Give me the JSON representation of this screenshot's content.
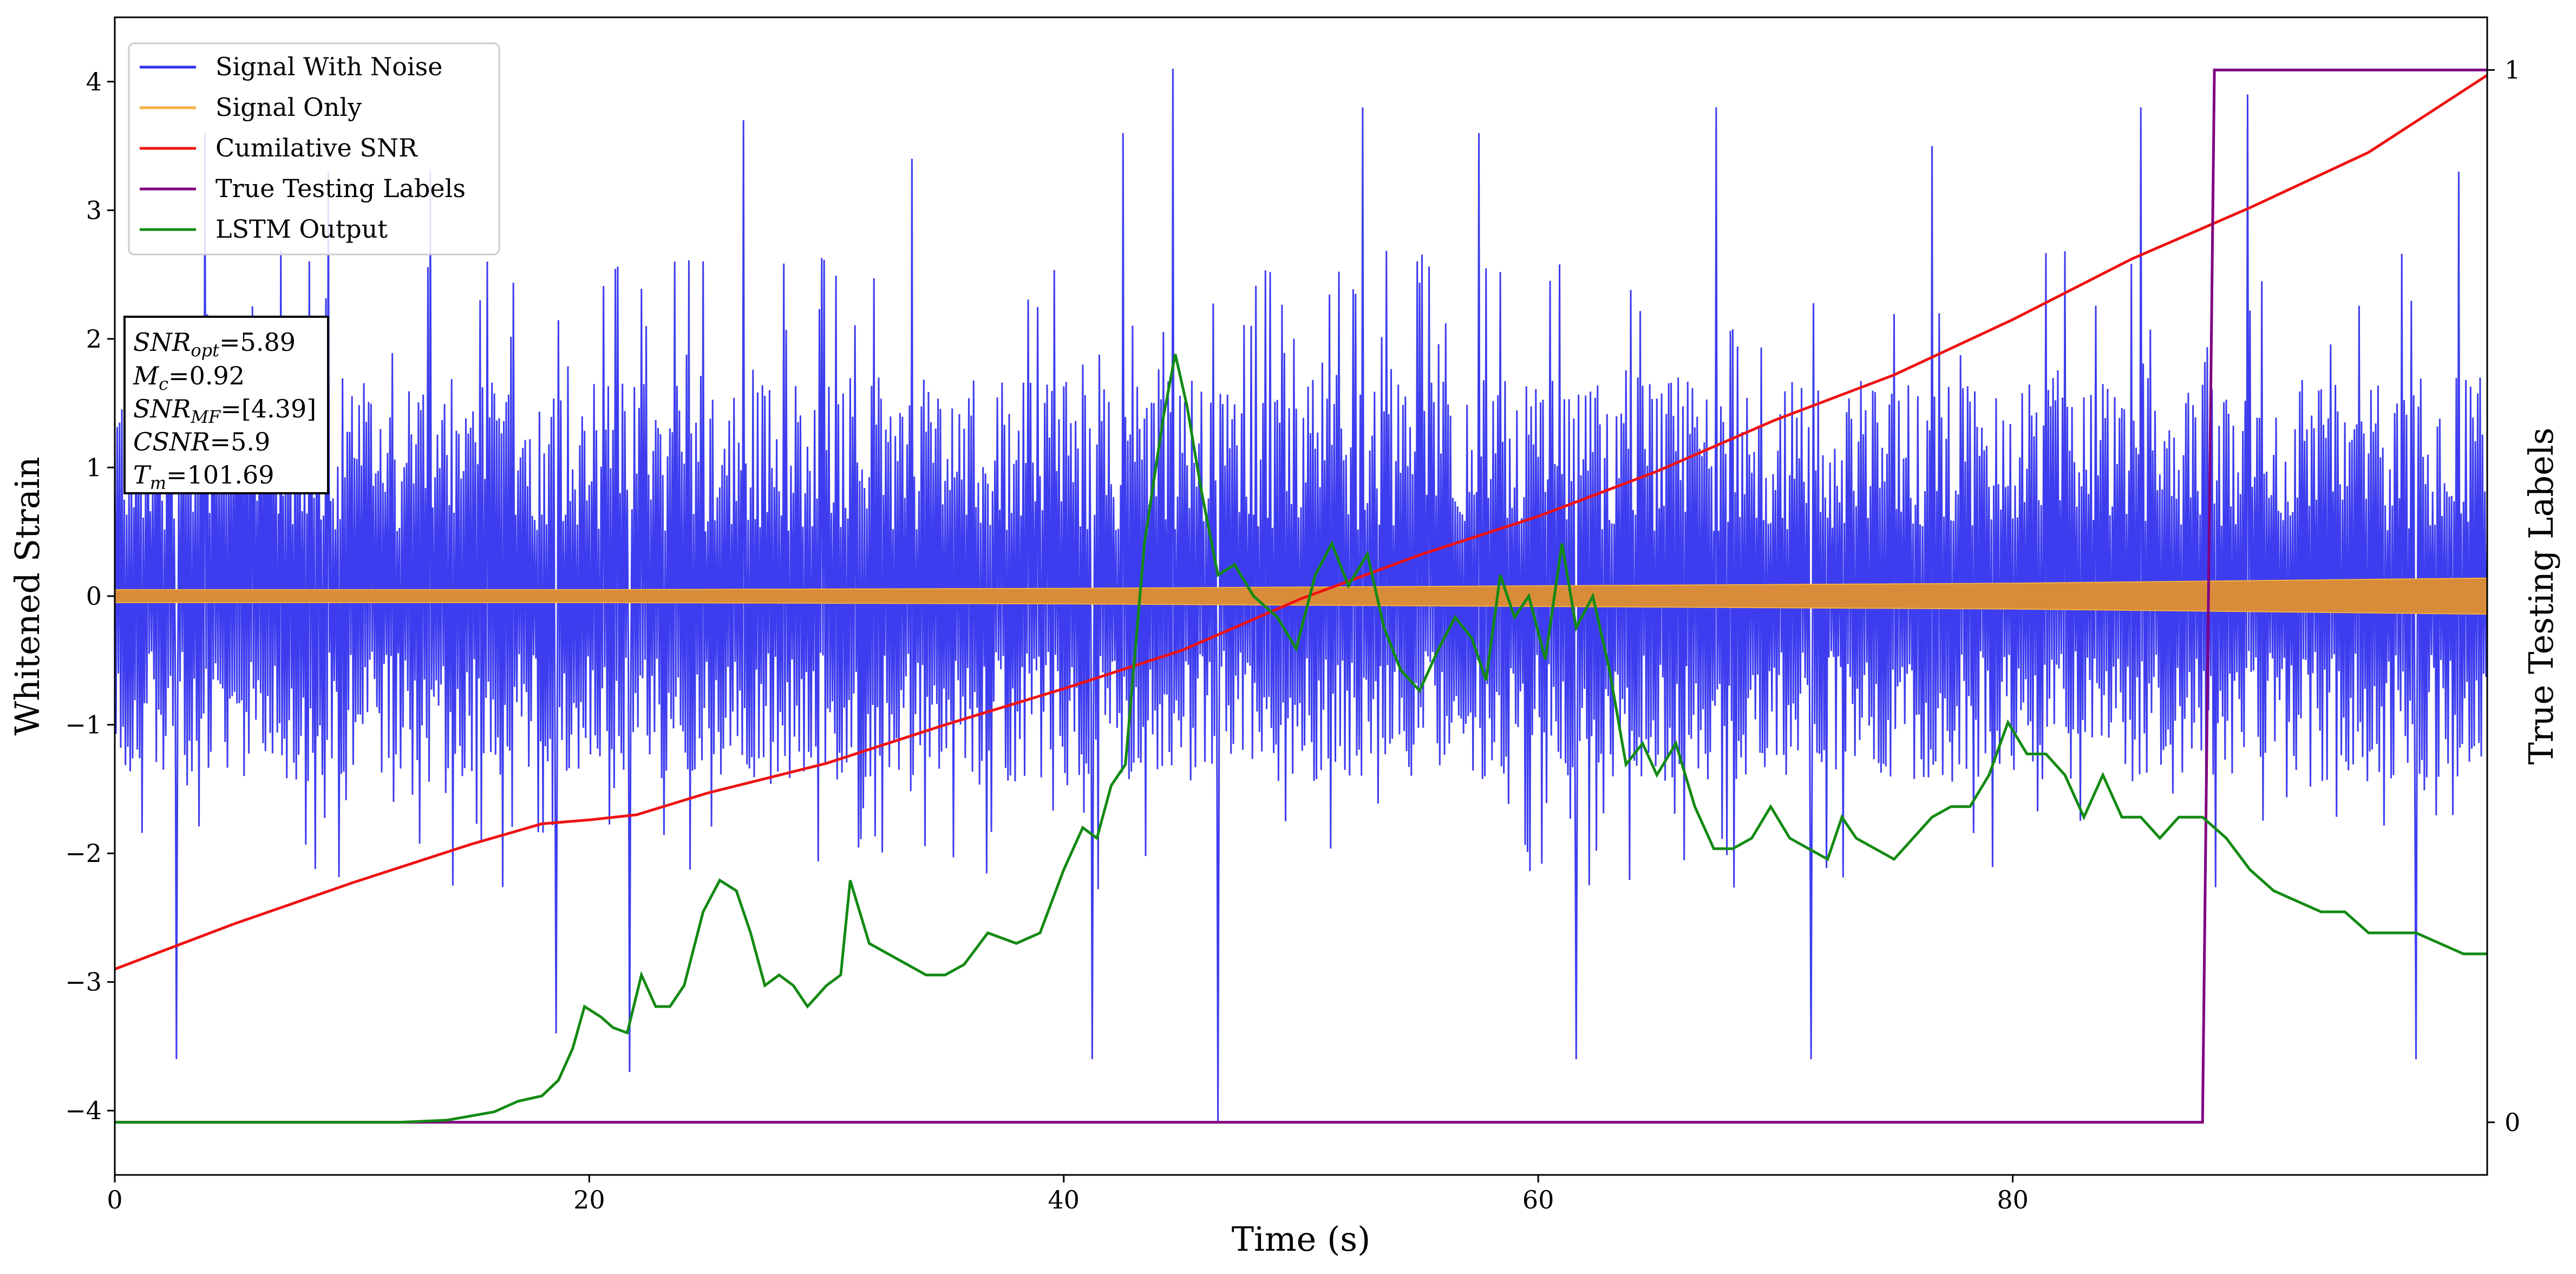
{
  "chart_data": {
    "type": "line",
    "xlabel": "Time (s)",
    "ylabel": "Whitened Strain",
    "y2label": "True Testing Labels",
    "xlim": [
      0,
      100
    ],
    "ylim": [
      -4.5,
      4.5
    ],
    "y2lim": [
      -0.05,
      1.05
    ],
    "x_ticks": [
      0,
      20,
      40,
      60,
      80
    ],
    "y_ticks": [
      -4,
      -3,
      -2,
      -1,
      0,
      1,
      2,
      3,
      4
    ],
    "y2_ticks": [
      0,
      1
    ],
    "grid": false,
    "legend_position": "top-left",
    "colors": {
      "signal_with_noise": "#3333ee",
      "signal_only": "#f5b041",
      "signal_only_band": "#d88c3a",
      "cumulative_snr": "#ee1111",
      "true_labels": "#800080",
      "lstm_output": "#138a13"
    },
    "legend": [
      {
        "label": "Signal With Noise",
        "color_key": "signal_with_noise"
      },
      {
        "label": "Signal Only",
        "color_key": "signal_only"
      },
      {
        "label": "Cumilative SNR",
        "color_key": "cumulative_snr"
      },
      {
        "label": "True Testing Labels",
        "color_key": "true_labels"
      },
      {
        "label": "LSTM Output",
        "color_key": "lstm_output"
      }
    ],
    "info_box": {
      "snr_opt": {
        "base": "SNR",
        "sub": "opt",
        "value": "=5.89"
      },
      "m_c": {
        "base": "M",
        "sub": "c",
        "value": "=0.92"
      },
      "snr_mf": {
        "base": "SNR",
        "sub": "MF",
        "value": "=[4.39]"
      },
      "csnr": {
        "base": "CSNR",
        "value": "=5.9"
      },
      "t_m": {
        "base": "T",
        "sub": "m",
        "value": "=101.69"
      }
    },
    "series": [
      {
        "name": "Signal With Noise",
        "axis": "left",
        "description_range": [
          -4.1,
          4.1
        ],
        "typical_envelope": {
          "upper": 2.3,
          "lower": -1.8
        },
        "spikes": [
          {
            "x": 3.8,
            "y": 3.6
          },
          {
            "x": 2.6,
            "y": -3.6
          },
          {
            "x": 9.0,
            "y": 3.3
          },
          {
            "x": 13.3,
            "y": 3.3
          },
          {
            "x": 18.6,
            "y": -3.4
          },
          {
            "x": 21.7,
            "y": -3.7
          },
          {
            "x": 26.5,
            "y": 3.7
          },
          {
            "x": 33.6,
            "y": 3.4
          },
          {
            "x": 41.2,
            "y": -3.6
          },
          {
            "x": 42.5,
            "y": 3.6
          },
          {
            "x": 44.6,
            "y": 4.1
          },
          {
            "x": 46.5,
            "y": -4.1
          },
          {
            "x": 52.6,
            "y": 3.8
          },
          {
            "x": 57.5,
            "y": 3.6
          },
          {
            "x": 61.6,
            "y": -3.6
          },
          {
            "x": 67.5,
            "y": 3.8
          },
          {
            "x": 71.5,
            "y": -3.6
          },
          {
            "x": 76.6,
            "y": 3.5
          },
          {
            "x": 85.4,
            "y": 3.8
          },
          {
            "x": 89.9,
            "y": 3.9
          },
          {
            "x": 97.0,
            "y": -3.6
          },
          {
            "x": 98.8,
            "y": 3.3
          }
        ]
      },
      {
        "name": "Signal Only",
        "axis": "left",
        "amplitude": [
          {
            "x": 0,
            "y": 0.05
          },
          {
            "x": 20,
            "y": 0.05
          },
          {
            "x": 40,
            "y": 0.06
          },
          {
            "x": 60,
            "y": 0.08
          },
          {
            "x": 80,
            "y": 0.1
          },
          {
            "x": 100,
            "y": 0.14
          }
        ]
      },
      {
        "name": "Cumilative SNR",
        "axis": "left",
        "points": [
          {
            "x": 0,
            "y": -2.9
          },
          {
            "x": 5,
            "y": -2.55
          },
          {
            "x": 10,
            "y": -2.23
          },
          {
            "x": 15,
            "y": -1.93
          },
          {
            "x": 18,
            "y": -1.77
          },
          {
            "x": 20,
            "y": -1.74
          },
          {
            "x": 22,
            "y": -1.7
          },
          {
            "x": 25,
            "y": -1.53
          },
          {
            "x": 30,
            "y": -1.3
          },
          {
            "x": 35,
            "y": -1.0
          },
          {
            "x": 40,
            "y": -0.72
          },
          {
            "x": 45,
            "y": -0.42
          },
          {
            "x": 50,
            "y": -0.02
          },
          {
            "x": 55,
            "y": 0.32
          },
          {
            "x": 60,
            "y": 0.62
          },
          {
            "x": 65,
            "y": 0.97
          },
          {
            "x": 70,
            "y": 1.37
          },
          {
            "x": 75,
            "y": 1.72
          },
          {
            "x": 80,
            "y": 2.15
          },
          {
            "x": 85,
            "y": 2.62
          },
          {
            "x": 90,
            "y": 3.02
          },
          {
            "x": 95,
            "y": 3.45
          },
          {
            "x": 100,
            "y": 4.05
          }
        ]
      },
      {
        "name": "True Testing Labels",
        "axis": "right",
        "points": [
          {
            "x": 0,
            "y": 0
          },
          {
            "x": 88.0,
            "y": 0
          },
          {
            "x": 88.5,
            "y": 1
          },
          {
            "x": 100,
            "y": 1
          }
        ]
      },
      {
        "name": "LSTM Output",
        "axis": "right",
        "points": [
          {
            "x": 0,
            "y": 0
          },
          {
            "x": 12,
            "y": 0
          },
          {
            "x": 14,
            "y": 0.002
          },
          {
            "x": 16,
            "y": 0.01
          },
          {
            "x": 17,
            "y": 0.02
          },
          {
            "x": 18,
            "y": 0.025
          },
          {
            "x": 18.7,
            "y": 0.04
          },
          {
            "x": 19.3,
            "y": 0.07
          },
          {
            "x": 19.8,
            "y": 0.11
          },
          {
            "x": 20.5,
            "y": 0.1
          },
          {
            "x": 21.0,
            "y": 0.09
          },
          {
            "x": 21.6,
            "y": 0.085
          },
          {
            "x": 22.2,
            "y": 0.14
          },
          {
            "x": 22.8,
            "y": 0.11
          },
          {
            "x": 23.4,
            "y": 0.11
          },
          {
            "x": 24.0,
            "y": 0.13
          },
          {
            "x": 24.8,
            "y": 0.2
          },
          {
            "x": 25.5,
            "y": 0.23
          },
          {
            "x": 26.2,
            "y": 0.22
          },
          {
            "x": 26.8,
            "y": 0.18
          },
          {
            "x": 27.4,
            "y": 0.13
          },
          {
            "x": 28.0,
            "y": 0.14
          },
          {
            "x": 28.6,
            "y": 0.13
          },
          {
            "x": 29.2,
            "y": 0.11
          },
          {
            "x": 30.0,
            "y": 0.13
          },
          {
            "x": 30.6,
            "y": 0.14
          },
          {
            "x": 31.0,
            "y": 0.23
          },
          {
            "x": 31.8,
            "y": 0.17
          },
          {
            "x": 32.6,
            "y": 0.16
          },
          {
            "x": 33.4,
            "y": 0.15
          },
          {
            "x": 34.2,
            "y": 0.14
          },
          {
            "x": 35.0,
            "y": 0.14
          },
          {
            "x": 35.8,
            "y": 0.15
          },
          {
            "x": 36.8,
            "y": 0.18
          },
          {
            "x": 38.0,
            "y": 0.17
          },
          {
            "x": 39.0,
            "y": 0.18
          },
          {
            "x": 40.0,
            "y": 0.24
          },
          {
            "x": 40.8,
            "y": 0.28
          },
          {
            "x": 41.4,
            "y": 0.27
          },
          {
            "x": 42.0,
            "y": 0.32
          },
          {
            "x": 42.6,
            "y": 0.34
          },
          {
            "x": 43.4,
            "y": 0.55
          },
          {
            "x": 44.2,
            "y": 0.67
          },
          {
            "x": 44.7,
            "y": 0.73
          },
          {
            "x": 45.2,
            "y": 0.68
          },
          {
            "x": 45.8,
            "y": 0.6
          },
          {
            "x": 46.5,
            "y": 0.52
          },
          {
            "x": 47.2,
            "y": 0.53
          },
          {
            "x": 48.0,
            "y": 0.5
          },
          {
            "x": 49.0,
            "y": 0.48
          },
          {
            "x": 49.8,
            "y": 0.45
          },
          {
            "x": 50.6,
            "y": 0.52
          },
          {
            "x": 51.3,
            "y": 0.55
          },
          {
            "x": 52.0,
            "y": 0.51
          },
          {
            "x": 52.8,
            "y": 0.54
          },
          {
            "x": 53.5,
            "y": 0.47
          },
          {
            "x": 54.2,
            "y": 0.43
          },
          {
            "x": 55.0,
            "y": 0.41
          },
          {
            "x": 55.8,
            "y": 0.45
          },
          {
            "x": 56.5,
            "y": 0.48
          },
          {
            "x": 57.2,
            "y": 0.46
          },
          {
            "x": 57.8,
            "y": 0.42
          },
          {
            "x": 58.4,
            "y": 0.52
          },
          {
            "x": 59.0,
            "y": 0.48
          },
          {
            "x": 59.6,
            "y": 0.5
          },
          {
            "x": 60.3,
            "y": 0.44
          },
          {
            "x": 61.0,
            "y": 0.55
          },
          {
            "x": 61.6,
            "y": 0.47
          },
          {
            "x": 62.3,
            "y": 0.5
          },
          {
            "x": 63.0,
            "y": 0.43
          },
          {
            "x": 63.7,
            "y": 0.34
          },
          {
            "x": 64.4,
            "y": 0.36
          },
          {
            "x": 65.0,
            "y": 0.33
          },
          {
            "x": 65.8,
            "y": 0.36
          },
          {
            "x": 66.6,
            "y": 0.3
          },
          {
            "x": 67.4,
            "y": 0.26
          },
          {
            "x": 68.2,
            "y": 0.26
          },
          {
            "x": 69.0,
            "y": 0.27
          },
          {
            "x": 69.8,
            "y": 0.3
          },
          {
            "x": 70.6,
            "y": 0.27
          },
          {
            "x": 71.4,
            "y": 0.26
          },
          {
            "x": 72.2,
            "y": 0.25
          },
          {
            "x": 72.8,
            "y": 0.29
          },
          {
            "x": 73.4,
            "y": 0.27
          },
          {
            "x": 74.2,
            "y": 0.26
          },
          {
            "x": 75.0,
            "y": 0.25
          },
          {
            "x": 75.8,
            "y": 0.27
          },
          {
            "x": 76.6,
            "y": 0.29
          },
          {
            "x": 77.4,
            "y": 0.3
          },
          {
            "x": 78.2,
            "y": 0.3
          },
          {
            "x": 79.0,
            "y": 0.33
          },
          {
            "x": 79.8,
            "y": 0.38
          },
          {
            "x": 80.6,
            "y": 0.35
          },
          {
            "x": 81.4,
            "y": 0.35
          },
          {
            "x": 82.2,
            "y": 0.33
          },
          {
            "x": 83.0,
            "y": 0.29
          },
          {
            "x": 83.8,
            "y": 0.33
          },
          {
            "x": 84.6,
            "y": 0.29
          },
          {
            "x": 85.4,
            "y": 0.29
          },
          {
            "x": 86.2,
            "y": 0.27
          },
          {
            "x": 87.0,
            "y": 0.29
          },
          {
            "x": 88.0,
            "y": 0.29
          },
          {
            "x": 89.0,
            "y": 0.27
          },
          {
            "x": 90.0,
            "y": 0.24
          },
          {
            "x": 91.0,
            "y": 0.22
          },
          {
            "x": 92.0,
            "y": 0.21
          },
          {
            "x": 93.0,
            "y": 0.2
          },
          {
            "x": 94.0,
            "y": 0.2
          },
          {
            "x": 95.0,
            "y": 0.18
          },
          {
            "x": 96.0,
            "y": 0.18
          },
          {
            "x": 97.0,
            "y": 0.18
          },
          {
            "x": 98.0,
            "y": 0.17
          },
          {
            "x": 99.0,
            "y": 0.16
          },
          {
            "x": 100.0,
            "y": 0.16
          }
        ]
      }
    ]
  }
}
